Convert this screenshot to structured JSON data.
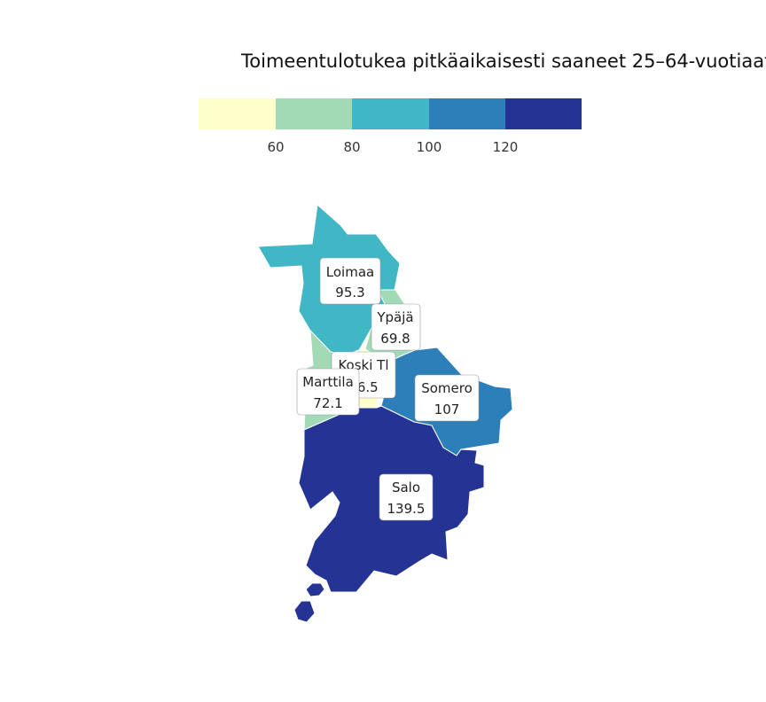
{
  "title": "Toimeentulotukea pitkäaikaisesti saaneet 25–64-vuotiaat",
  "legend": {
    "colors": [
      "#ffffcc",
      "#a1dab4",
      "#41b6c4",
      "#2c7fb8",
      "#253494"
    ],
    "ticks": [
      "60",
      "80",
      "100",
      "120"
    ]
  },
  "regions": [
    {
      "name": "Loimaa",
      "value": "95.3",
      "color": "#41b6c4"
    },
    {
      "name": "Ypäjä",
      "value": "69.8",
      "color": "#a1dab4"
    },
    {
      "name": "Koski Tl",
      "value": "56.5",
      "color": "#ffffcc"
    },
    {
      "name": "Marttila",
      "value": "72.1",
      "color": "#a1dab4"
    },
    {
      "name": "Somero",
      "value": "107",
      "color": "#2c7fb8"
    },
    {
      "name": "Salo",
      "value": "139.5",
      "color": "#253494"
    }
  ]
}
